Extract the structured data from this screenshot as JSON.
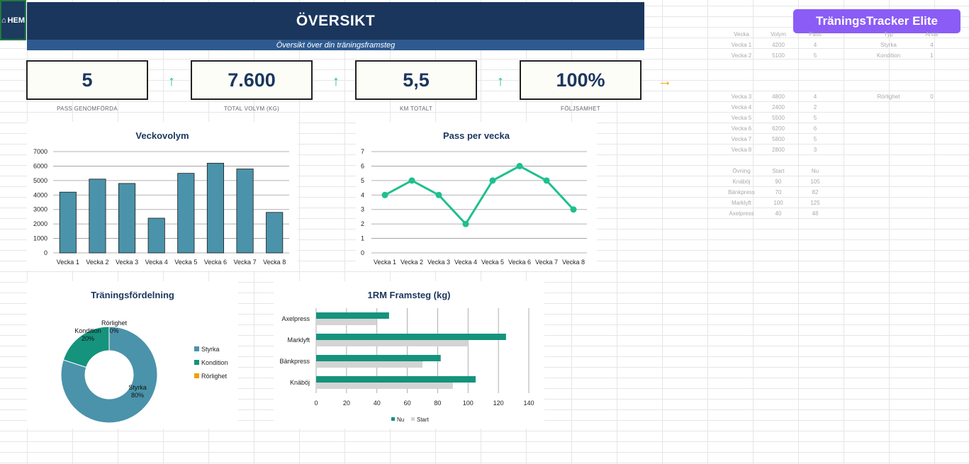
{
  "header": {
    "home_label": "HEM",
    "title": "ÖVERSIKT",
    "subtitle": "Översikt över din träningsframsteg",
    "brand": "TräningsTracker Elite"
  },
  "kpis": [
    {
      "value": "5",
      "label": "PASS GENOMFÖRDA",
      "trend": "up",
      "trend_icon": "↑",
      "color": "#1fbf8f"
    },
    {
      "value": "7.600",
      "label": "TOTAL VOLYM (KG)",
      "trend": "up",
      "trend_icon": "↑",
      "color": "#1fbf8f"
    },
    {
      "value": "5,5",
      "label": "KM TOTALT",
      "trend": "up",
      "trend_icon": "↑",
      "color": "#1fbf8f"
    },
    {
      "value": "100%",
      "label": "FÖLJSAMHET",
      "trend": "right",
      "trend_icon": "→",
      "color": "#f0a000"
    }
  ],
  "chart_data": [
    {
      "type": "bar",
      "title": "Veckovolym",
      "categories": [
        "Vecka 1",
        "Vecka 2",
        "Vecka 3",
        "Vecka 4",
        "Vecka 5",
        "Vecka 6",
        "Vecka 7",
        "Vecka 8"
      ],
      "values": [
        4200,
        5100,
        4800,
        2400,
        5500,
        6200,
        5800,
        2800
      ],
      "yticks": [
        0,
        1000,
        2000,
        3000,
        4000,
        5000,
        6000,
        7000
      ],
      "ylim": [
        0,
        7000
      ],
      "color": "#4a93aa"
    },
    {
      "type": "line",
      "title": "Pass per vecka",
      "categories": [
        "Vecka 1",
        "Vecka 2",
        "Vecka 3",
        "Vecka 4",
        "Vecka 5",
        "Vecka 6",
        "Vecka 7",
        "Vecka 8"
      ],
      "values": [
        4,
        5,
        4,
        2,
        5,
        6,
        5,
        3
      ],
      "yticks": [
        0,
        1,
        2,
        3,
        4,
        5,
        6,
        7
      ],
      "ylim": [
        0,
        7
      ],
      "color": "#1fbf8f"
    },
    {
      "type": "pie",
      "title": "Träningsfördelning",
      "labels": [
        "Styrka",
        "Kondition",
        "Rörlighet"
      ],
      "values": [
        80,
        20,
        0
      ],
      "data_labels": [
        [
          "Styrka",
          "80%"
        ],
        [
          "Kondition",
          "20%"
        ],
        [
          "Rörlighet",
          "0%"
        ]
      ],
      "colors": [
        "#4a93aa",
        "#15937d",
        "#f0a000"
      ],
      "legend": "right"
    },
    {
      "type": "bar",
      "orientation": "horizontal",
      "title": "1RM Framsteg (kg)",
      "categories": [
        "Knäböj",
        "Bänkpress",
        "Marklyft",
        "Axelpress"
      ],
      "series": [
        {
          "name": "Nu",
          "values": [
            105,
            82,
            125,
            48
          ],
          "color": "#15937d"
        },
        {
          "name": "Start",
          "values": [
            90,
            70,
            100,
            40
          ],
          "color": "#d4d4d4"
        }
      ],
      "xticks": [
        0,
        20,
        40,
        60,
        80,
        100,
        120,
        140
      ],
      "xlim": [
        0,
        140
      ],
      "legend": "bottom"
    }
  ],
  "side_data": {
    "weeks_header": [
      "Vecka",
      "Volym",
      "Pass"
    ],
    "weeks": [
      [
        "Vecka 1",
        "4200",
        "4"
      ],
      [
        "Vecka 2",
        "5100",
        "5"
      ],
      [
        "Vecka 3",
        "4800",
        "4"
      ],
      [
        "Vecka 4",
        "2400",
        "2"
      ],
      [
        "Vecka 5",
        "5500",
        "5"
      ],
      [
        "Vecka 6",
        "6200",
        "6"
      ],
      [
        "Vecka 7",
        "5800",
        "5"
      ],
      [
        "Vecka 8",
        "2800",
        "3"
      ]
    ],
    "types_header": [
      "Typ",
      "Antal"
    ],
    "types": [
      [
        "Styrka",
        "4"
      ],
      [
        "Kondition",
        "1"
      ],
      [
        "Rörlighet",
        "0"
      ]
    ],
    "lifts_header": [
      "Övning",
      "Start",
      "Nu"
    ],
    "lifts": [
      [
        "Knäböj",
        "90",
        "105"
      ],
      [
        "Bänkpress",
        "70",
        "82"
      ],
      [
        "Marklyft",
        "100",
        "125"
      ],
      [
        "Axelpress",
        "40",
        "48"
      ]
    ]
  }
}
